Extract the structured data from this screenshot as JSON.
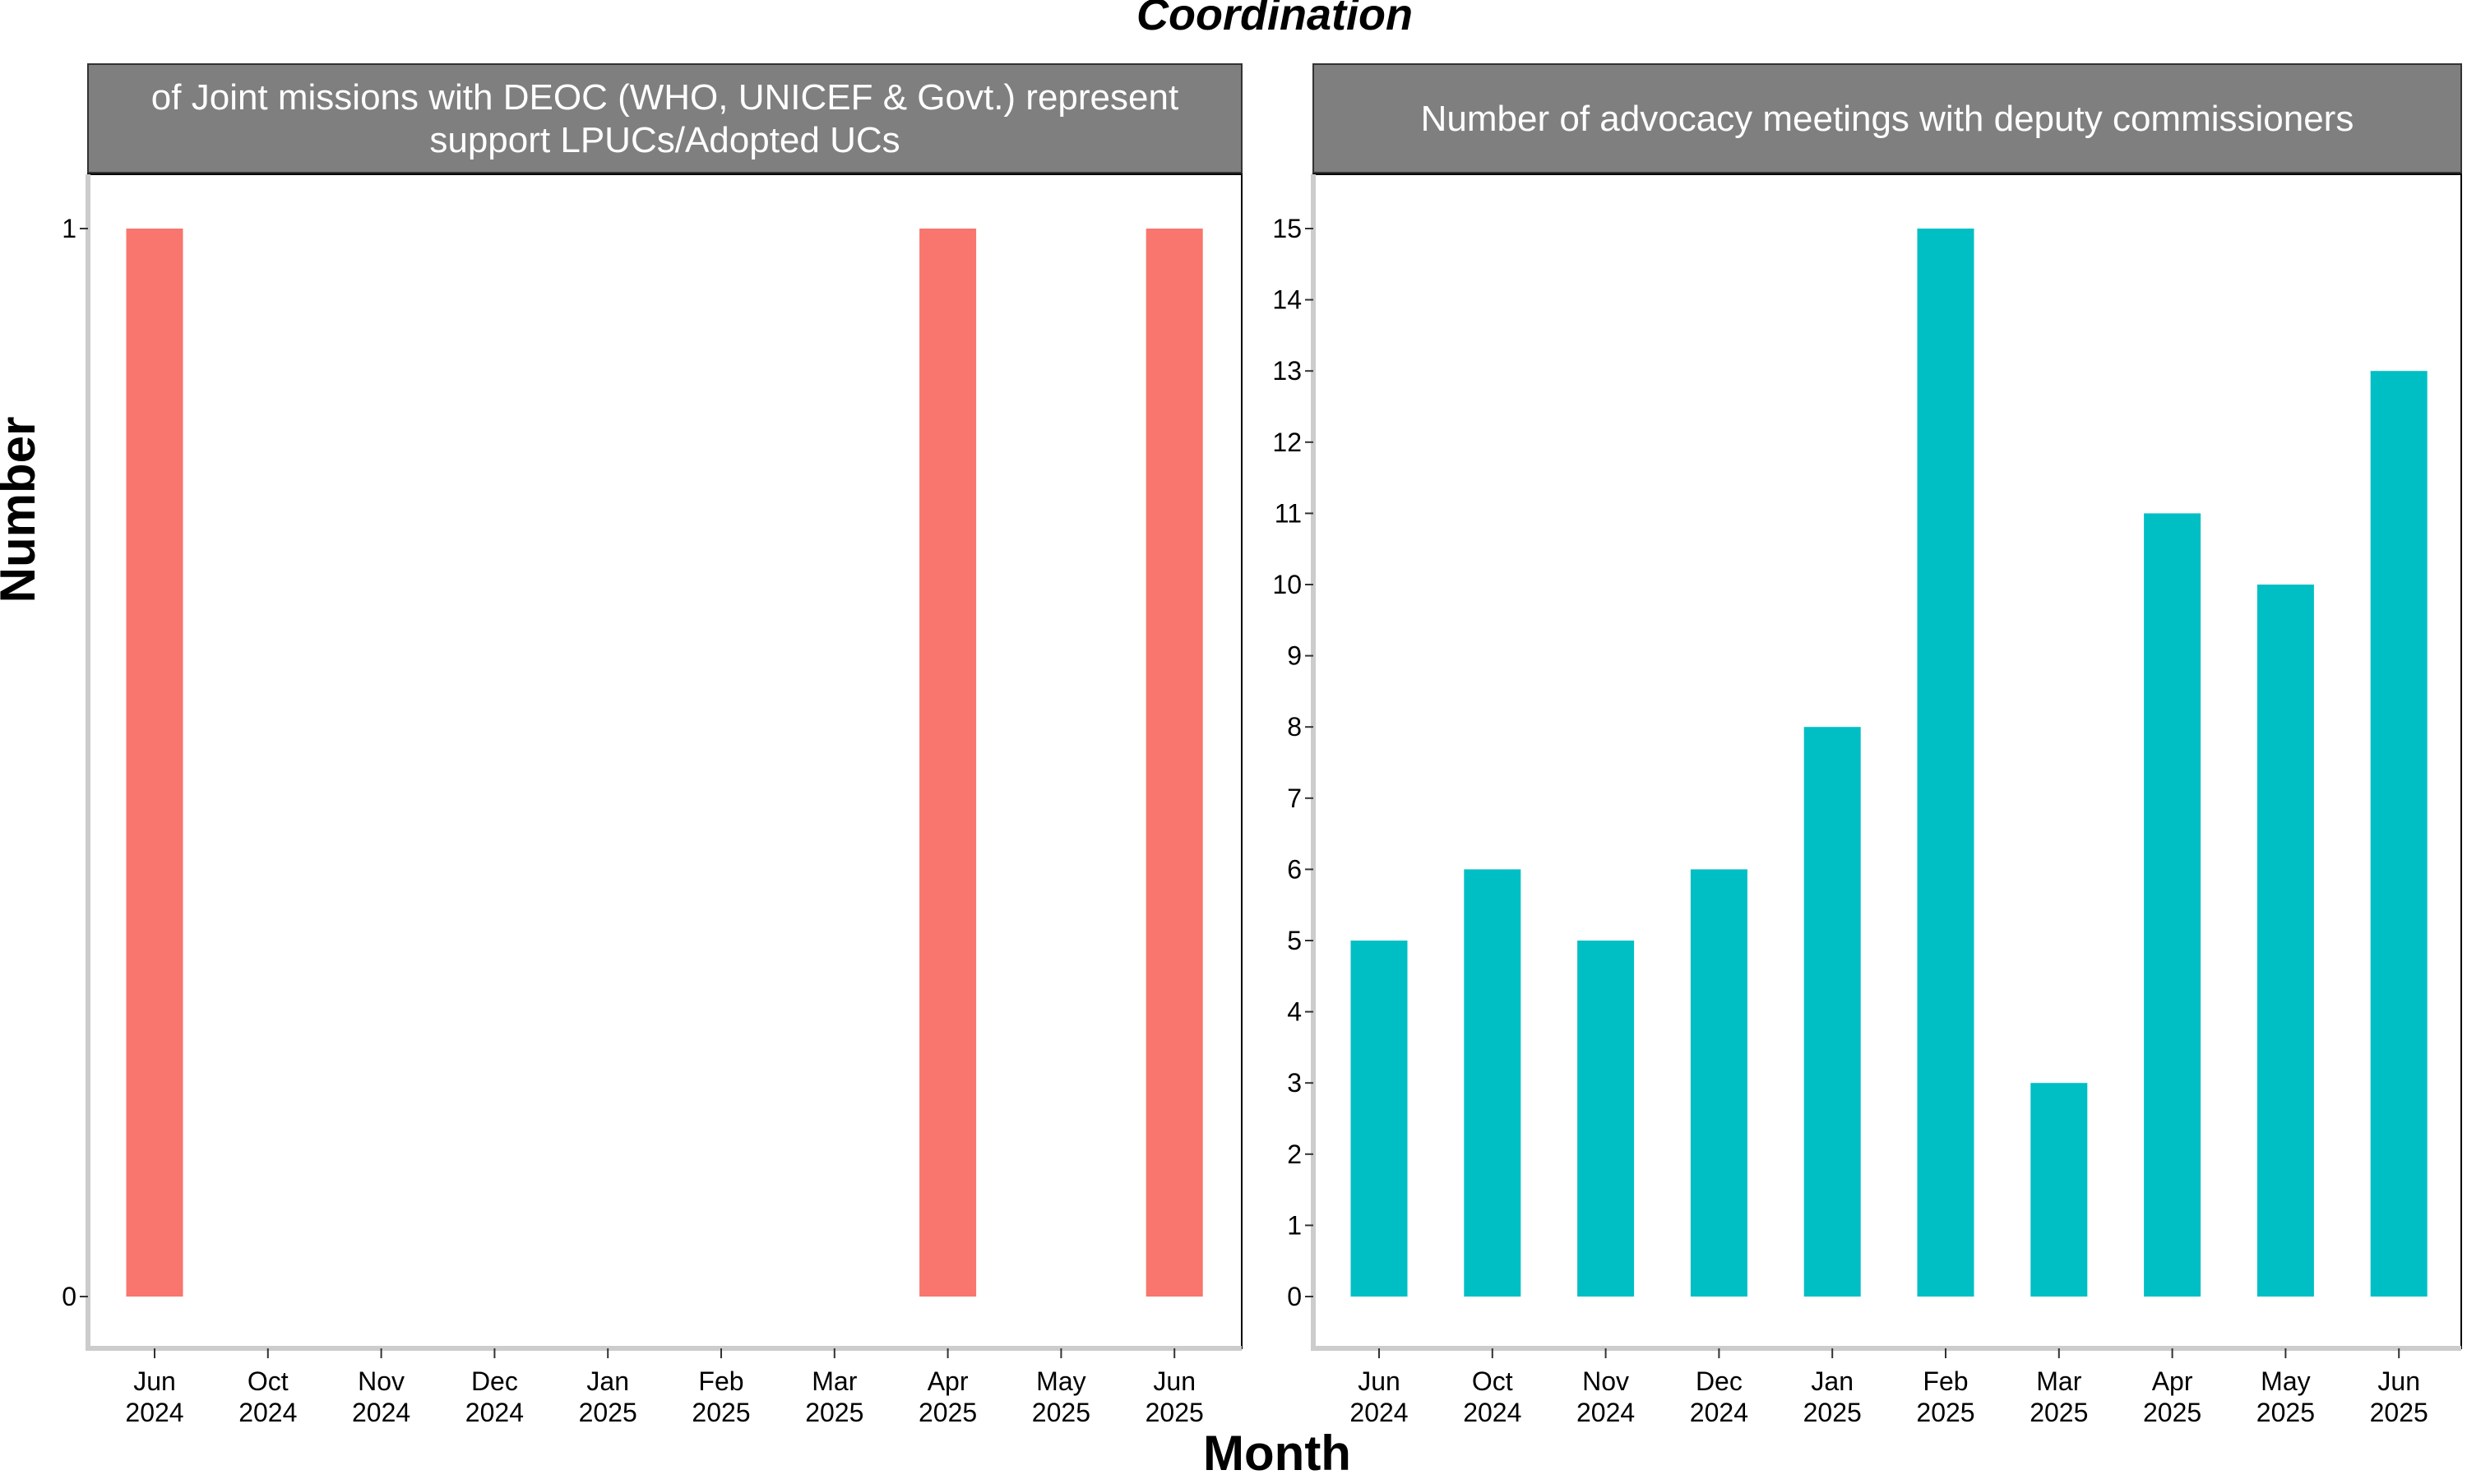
{
  "chart_data": {
    "type": "bar",
    "title": "Coordination",
    "xlabel": "Month",
    "ylabel": "Number",
    "grid": false,
    "legend": "none",
    "x": [
      "Jun\n2024",
      "Oct\n2024",
      "Nov\n2024",
      "Dec\n2024",
      "Jan\n2025",
      "Feb\n2025",
      "Mar\n2025",
      "Apr\n2025",
      "May\n2025",
      "Jun\n2025"
    ],
    "panels": [
      {
        "name": "Number of Joint missions with DEOC (WHO, UNICEF & Govt.) representatives to support LPUCs/Adopted UCs",
        "strip_lines": [
          "of Joint missions with DEOC (WHO, UNICEF & Govt.) represent",
          "support LPUCs/Adopted UCs"
        ],
        "color": "#F8766D",
        "values": [
          1,
          null,
          null,
          null,
          null,
          null,
          null,
          1,
          null,
          1
        ],
        "ylim": [
          0,
          1
        ],
        "yticks": [
          0,
          1
        ]
      },
      {
        "name": "Number of advocacy meetings with deputy commissioners",
        "strip_lines": [
          "Number of advocacy meetings with deputy commissioners"
        ],
        "color": "#00BFC4",
        "values": [
          5,
          6,
          5,
          6,
          8,
          15,
          3,
          11,
          10,
          13
        ],
        "ylim": [
          0,
          15
        ],
        "yticks": [
          0,
          1,
          2,
          3,
          4,
          5,
          6,
          7,
          8,
          9,
          10,
          11,
          12,
          13,
          14,
          15
        ]
      }
    ]
  }
}
